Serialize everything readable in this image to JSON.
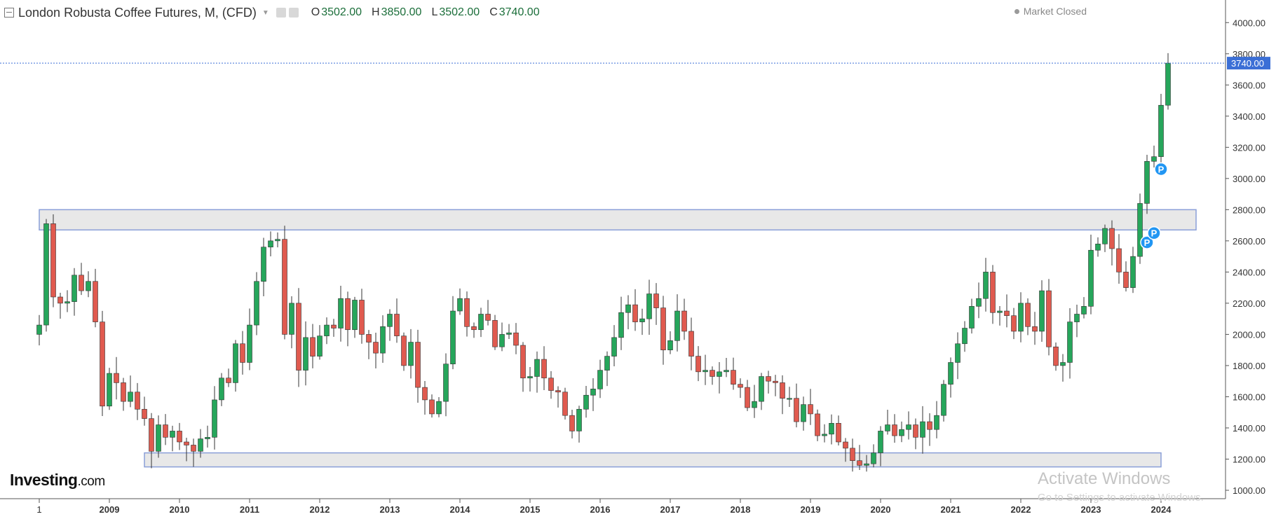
{
  "header": {
    "title": "London Robusta Coffee Futures, M, (CFD)",
    "ohlc": [
      {
        "k": "O",
        "v": "3502.00"
      },
      {
        "k": "H",
        "v": "3850.00"
      },
      {
        "k": "L",
        "v": "3502.00"
      },
      {
        "k": "C",
        "v": "3740.00"
      }
    ]
  },
  "market_status": "Market Closed",
  "logo": {
    "brand": "Investing",
    "suffix": ".com"
  },
  "watermark": {
    "line1": "Activate Windows",
    "line2": "Go to Settings to activate Windows."
  },
  "colors": {
    "up": "#26a65b",
    "down": "#e05a4f",
    "last_price": "#3b6fd6",
    "zone_fill": "#e8e8e8",
    "zone_border": "#8a9fd8",
    "pin": "#2196f3"
  },
  "icons": [
    "collapse-icon",
    "dropdown-caret-icon",
    "camera-icon",
    "settings-icon",
    "status-dot-icon"
  ],
  "chart_data": {
    "type": "candlestick",
    "title": "London Robusta Coffee Futures, M, (CFD)",
    "interval": "M",
    "last_price": 3740,
    "last_price_label": "3740.00",
    "ylim": [
      1000,
      4100
    ],
    "y_ticks": [
      {
        "v": 1000,
        "label": "1000.00"
      },
      {
        "v": 1200,
        "label": "1200.00"
      },
      {
        "v": 1400,
        "label": "1400.00"
      },
      {
        "v": 1600,
        "label": "1600.00"
      },
      {
        "v": 1800,
        "label": "1800.00"
      },
      {
        "v": 2000,
        "label": "2000.00"
      },
      {
        "v": 2200,
        "label": "2200.00"
      },
      {
        "v": 2400,
        "label": "2400.00"
      },
      {
        "v": 2600,
        "label": "2600.00"
      },
      {
        "v": 2800,
        "label": "2800.00"
      },
      {
        "v": 3000,
        "label": "3000.00"
      },
      {
        "v": 3200,
        "label": "3200.00"
      },
      {
        "v": 3400,
        "label": "3400.00"
      },
      {
        "v": 3600,
        "label": "3600.00"
      },
      {
        "v": 3800,
        "label": "3800.00"
      },
      {
        "v": 4000,
        "label": "4000.00"
      }
    ],
    "x_ticks": [
      {
        "i": 0,
        "label": "1"
      },
      {
        "i": 10,
        "label": "2009"
      },
      {
        "i": 20,
        "label": "2010"
      },
      {
        "i": 30,
        "label": "2011"
      },
      {
        "i": 40,
        "label": "2012"
      },
      {
        "i": 50,
        "label": "2013"
      },
      {
        "i": 60,
        "label": "2014"
      },
      {
        "i": 70,
        "label": "2015"
      },
      {
        "i": 80,
        "label": "2016"
      },
      {
        "i": 90,
        "label": "2017"
      },
      {
        "i": 100,
        "label": "2018"
      },
      {
        "i": 110,
        "label": "2019"
      },
      {
        "i": 120,
        "label": "2020"
      },
      {
        "i": 130,
        "label": "2021"
      },
      {
        "i": 140,
        "label": "2022"
      },
      {
        "i": 150,
        "label": "2023"
      },
      {
        "i": 160,
        "label": "2024"
      }
    ],
    "zones": [
      {
        "name": "resistance",
        "low": 2670,
        "high": 2800,
        "from": 0,
        "to": 165
      },
      {
        "name": "support",
        "low": 1150,
        "high": 1240,
        "from": 15,
        "to": 160
      }
    ],
    "markers": [
      {
        "i": 158,
        "value": 2590,
        "label": "P"
      },
      {
        "i": 159,
        "value": 2650,
        "label": "P"
      },
      {
        "i": 160,
        "value": 3060,
        "label": "P"
      }
    ],
    "closes": [
      2060,
      2710,
      2240,
      2200,
      2210,
      2380,
      2280,
      2340,
      2080,
      1540,
      1750,
      1690,
      1570,
      1630,
      1520,
      1460,
      1250,
      1420,
      1340,
      1380,
      1310,
      1290,
      1250,
      1330,
      1340,
      1580,
      1720,
      1690,
      1940,
      1820,
      2060,
      2340,
      2560,
      2600,
      2610,
      2000,
      2200,
      1770,
      1980,
      1860,
      1990,
      2060,
      2040,
      2230,
      2030,
      2220,
      2000,
      1950,
      1880,
      2050,
      2130,
      1990,
      1800,
      1950,
      1660,
      1580,
      1490,
      1570,
      1810,
      2150,
      2230,
      2050,
      2030,
      2130,
      2090,
      1920,
      2000,
      2010,
      1930,
      1720,
      1730,
      1840,
      1720,
      1640,
      1630,
      1480,
      1380,
      1520,
      1610,
      1650,
      1770,
      1860,
      1980,
      2140,
      2190,
      2080,
      2100,
      2260,
      2170,
      1900,
      1960,
      2150,
      2020,
      1860,
      1760,
      1770,
      1730,
      1760,
      1770,
      1680,
      1660,
      1530,
      1570,
      1730,
      1700,
      1690,
      1590,
      1590,
      1440,
      1550,
      1490,
      1350,
      1360,
      1430,
      1310,
      1270,
      1190,
      1160,
      1170,
      1240,
      1380,
      1420,
      1350,
      1390,
      1420,
      1340,
      1440,
      1390,
      1480,
      1680,
      1820,
      1940,
      2040,
      2180,
      2230,
      2400,
      2140,
      2150,
      2120,
      2020,
      2200,
      2050,
      2020,
      2280,
      1920,
      1800,
      1820,
      2080,
      2130,
      2180,
      2540,
      2580,
      2680,
      2550,
      2400,
      2300,
      2500,
      2840,
      3110,
      3140,
      3470,
      3740
    ],
    "note_open_first": 2000
  }
}
